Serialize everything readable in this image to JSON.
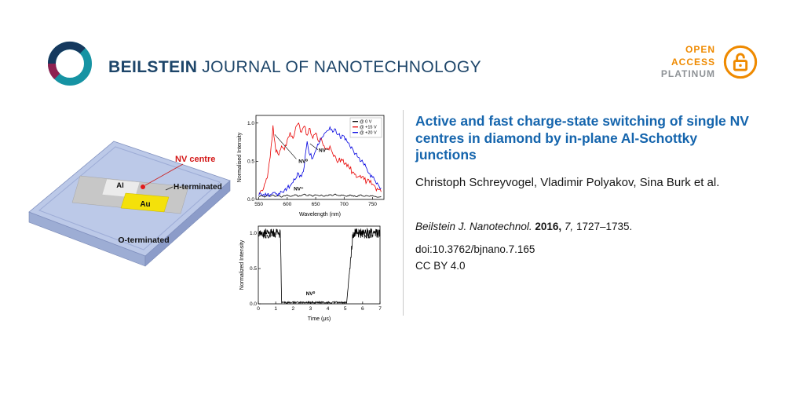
{
  "header": {
    "brand_primary": "BEILSTEIN",
    "brand_secondary": "JOURNAL OF NANOTECHNOLOGY",
    "open_access": {
      "line1": "OPEN",
      "line2": "ACCESS",
      "line3": "PLATINUM"
    }
  },
  "colors": {
    "brand_navy": "#1d4569",
    "title_blue": "#1565ad",
    "open_access_orange": "#ef8a00",
    "platinum_gray": "#8e9296"
  },
  "article": {
    "title": "Active and fast charge-state switching of single NV centres in diamond by in-plane Al-Schottky junctions",
    "authors": "Christoph Schreyvogel, Vladimir Polyakov, Sina Burk et al.",
    "citation": {
      "journal": "Beilstein J. Nanotechnol.",
      "year": "2016,",
      "volume": "7,",
      "pages": "1727–1735."
    },
    "doi": "doi:10.3762/bjnano.7.165",
    "license": "CC BY 4.0"
  },
  "schematic": {
    "labels": {
      "nv_centre": "NV centre",
      "h_terminated": "H-terminated",
      "o_terminated": "O-terminated",
      "al": "Al",
      "au": "Au"
    },
    "colors": {
      "plate_top": "#bcc9e8",
      "plate_edge_left": "#9dadd4",
      "plate_edge_right": "#8c9cc9",
      "stripe_gray": "#c7c7c7",
      "al_silver": "#ebebeb",
      "au_gold": "#f4e10a",
      "nv_red": "#e31b1b",
      "nv_label_red": "#d31616"
    }
  },
  "chart_data": [
    {
      "type": "line",
      "title": "",
      "xlabel": "Wavelength (nm)",
      "ylabel": "Normalised Intensity",
      "xlim": [
        545,
        770
      ],
      "ylim": [
        0,
        1.1
      ],
      "grid": false,
      "legend_position": "top-right",
      "xticks": [
        {
          "v": 550,
          "label": "550"
        },
        {
          "v": 600,
          "label": "600"
        },
        {
          "v": 650,
          "label": "650"
        },
        {
          "v": 700,
          "label": "700"
        },
        {
          "v": 750,
          "label": "750"
        }
      ],
      "yticks": [
        {
          "v": 0,
          "label": "0.0"
        },
        {
          "v": 0.5,
          "label": "0.5"
        },
        {
          "v": 1.0,
          "label": "1.0"
        }
      ],
      "legend": [
        {
          "label": "@ 0 V",
          "color": "#000000"
        },
        {
          "label": "@ +15 V",
          "color": "#e80000"
        },
        {
          "label": "@ +20 V",
          "color": "#0000e0"
        }
      ],
      "annotations": [
        {
          "text": "NV⁰",
          "x": 628,
          "y": 0.48,
          "lines": [
            [
              616,
              0.53,
              578,
              0.85
            ]
          ]
        },
        {
          "text": "NV⁻",
          "x": 664,
          "y": 0.62,
          "lines": [
            [
              654,
              0.65,
              640,
              0.73
            ]
          ]
        },
        {
          "text": "NV⁺",
          "x": 620,
          "y": 0.12
        }
      ],
      "series": [
        {
          "name": "@ 0 V",
          "color": "#000000",
          "x0": 550,
          "dx": 5,
          "noise": 0.008,
          "y": [
            0.04,
            0.05,
            0.03,
            0.05,
            0.04,
            0.06,
            0.04,
            0.05,
            0.03,
            0.05,
            0.06,
            0.04,
            0.05,
            0.06,
            0.04,
            0.05,
            0.07,
            0.05,
            0.06,
            0.04,
            0.06,
            0.05,
            0.06,
            0.04,
            0.05,
            0.06,
            0.05,
            0.07,
            0.05,
            0.06,
            0.05,
            0.04,
            0.06,
            0.05,
            0.04,
            0.05,
            0.06,
            0.04,
            0.05,
            0.04,
            0.05,
            0.04,
            0.03,
            0.04
          ]
        },
        {
          "name": "@ +15 V",
          "color": "#e80000",
          "x0": 550,
          "dx": 5,
          "noise": 0.04,
          "y": [
            0.08,
            0.12,
            0.2,
            0.28,
            0.55,
            0.97,
            0.62,
            0.58,
            0.7,
            0.65,
            0.78,
            0.88,
            0.8,
            0.95,
            1.0,
            0.88,
            0.96,
            0.84,
            0.93,
            0.8,
            0.87,
            0.76,
            0.8,
            0.7,
            0.66,
            0.7,
            0.6,
            0.56,
            0.5,
            0.53,
            0.46,
            0.43,
            0.4,
            0.36,
            0.33,
            0.3,
            0.28,
            0.26,
            0.24,
            0.22,
            0.2,
            0.16,
            0.13,
            0.1
          ]
        },
        {
          "name": "@ +20 V",
          "color": "#0000e0",
          "x0": 550,
          "dx": 5,
          "noise": 0.035,
          "y": [
            0.05,
            0.06,
            0.05,
            0.07,
            0.06,
            0.09,
            0.07,
            0.08,
            0.1,
            0.12,
            0.15,
            0.18,
            0.22,
            0.27,
            0.34,
            0.3,
            0.44,
            0.76,
            0.58,
            0.54,
            0.64,
            0.72,
            0.8,
            0.86,
            0.9,
            0.95,
            0.88,
            0.92,
            0.85,
            0.8,
            0.83,
            0.76,
            0.7,
            0.66,
            0.6,
            0.55,
            0.5,
            0.45,
            0.4,
            0.34,
            0.29,
            0.24,
            0.19,
            0.15
          ]
        }
      ]
    },
    {
      "type": "line",
      "title": "",
      "xlabel": "Time (μs)",
      "ylabel": "Normalized Intensity",
      "xlim": [
        0,
        7
      ],
      "ylim": [
        0,
        1.1
      ],
      "grid": false,
      "xticks": [
        {
          "v": 0,
          "label": "0"
        },
        {
          "v": 1,
          "label": "1"
        },
        {
          "v": 2,
          "label": "2"
        },
        {
          "v": 3,
          "label": "3"
        },
        {
          "v": 4,
          "label": "4"
        },
        {
          "v": 5,
          "label": "5"
        },
        {
          "v": 6,
          "label": "6"
        },
        {
          "v": 7,
          "label": "7"
        }
      ],
      "yticks": [
        {
          "v": 0,
          "label": "0.0"
        },
        {
          "v": 0.5,
          "label": "0.5"
        },
        {
          "v": 1.0,
          "label": "1.0"
        }
      ],
      "annotations": [
        {
          "text": "NV⁻",
          "x": 0.55,
          "y": 0.93
        },
        {
          "text": "NV⁰",
          "x": 3.0,
          "y": 0.12
        },
        {
          "text": "NV⁻",
          "x": 6.35,
          "y": 0.93
        }
      ],
      "series": [
        {
          "name": "PL time trace",
          "color": "#000000",
          "dx": 0.02,
          "keypoints": [
            [
              0,
              1.0
            ],
            [
              1.27,
              1.0
            ],
            [
              1.34,
              0.02
            ],
            [
              5.08,
              0.02
            ],
            [
              5.45,
              1.0
            ],
            [
              7,
              1.0
            ]
          ],
          "noise_high": 0.07,
          "noise_low": 0.012
        }
      ]
    }
  ]
}
